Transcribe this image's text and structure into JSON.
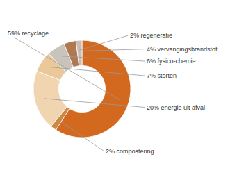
{
  "chart_data": {
    "type": "pie",
    "categories": [
      "59% recyclage",
      "2% compostering",
      "20% energie uit afval",
      "7% storten",
      "6% fysico-chemie",
      "4% vervangingsbrandstof",
      "2% regeneratie"
    ],
    "values": [
      59,
      2,
      20,
      7,
      6,
      4,
      2
    ],
    "colors": [
      "#D2691E",
      "#CC8844",
      "#F0D5B0",
      "#EAC89A",
      "#C8C4BC",
      "#B07850",
      "#C8BEB4"
    ]
  }
}
